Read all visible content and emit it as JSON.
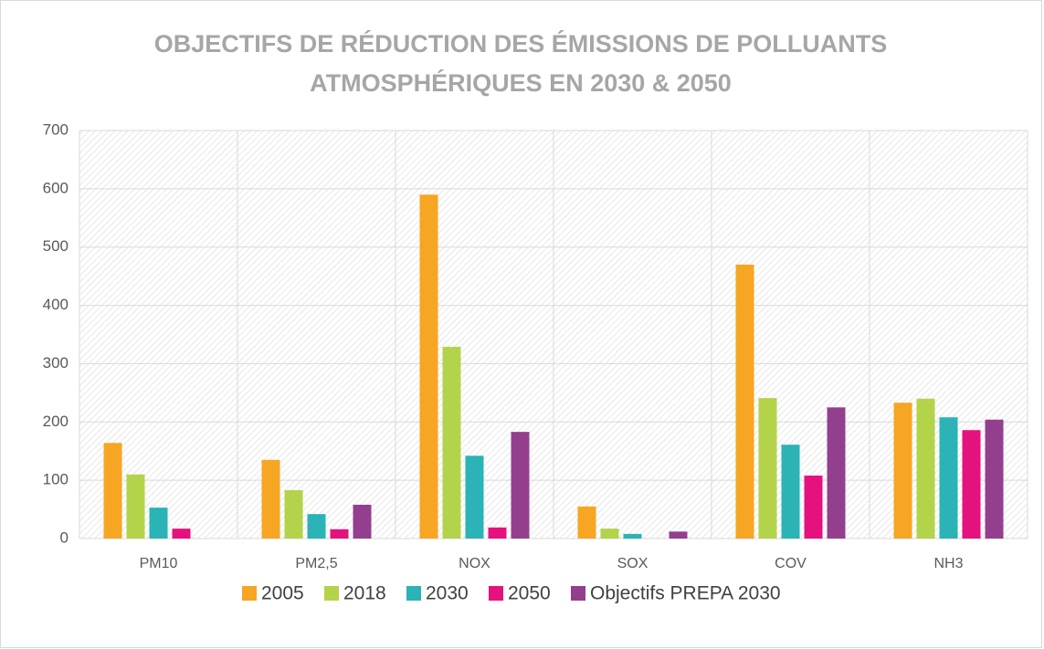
{
  "chart_data": {
    "type": "bar",
    "title": [
      "OBJECTIFS DE RÉDUCTION DES ÉMISSIONS DE POLLUANTS",
      "ATMOSPHÉRIQUES EN 2030 & 2050"
    ],
    "categories": [
      "PM10",
      "PM2,5",
      "NOX",
      "SOX",
      "COV",
      "NH3"
    ],
    "series": [
      {
        "name": "2005",
        "color": "#f6a623",
        "values": [
          164,
          135,
          590,
          55,
          470,
          233
        ]
      },
      {
        "name": "2018",
        "color": "#b3d34a",
        "values": [
          110,
          83,
          329,
          17,
          241,
          240
        ]
      },
      {
        "name": "2030",
        "color": "#2bb3b6",
        "values": [
          53,
          42,
          142,
          8,
          161,
          208
        ]
      },
      {
        "name": "2050",
        "color": "#e5117e",
        "values": [
          17,
          16,
          19,
          null,
          108,
          186
        ]
      },
      {
        "name": "Objectifs PREPA 2030",
        "color": "#933f8e",
        "values": [
          null,
          58,
          183,
          12,
          225,
          204
        ]
      }
    ],
    "ylim": [
      0,
      700
    ],
    "yticks": [
      0,
      100,
      200,
      300,
      400,
      500,
      600,
      700
    ],
    "grid": true,
    "legend": "bottom"
  }
}
